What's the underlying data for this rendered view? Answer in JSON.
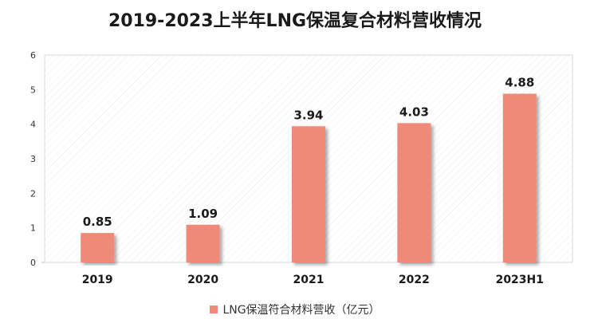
{
  "chart_data": {
    "type": "bar",
    "title": "2019-2023上半年LNG保温复合材料营收情况",
    "categories": [
      "2019",
      "2020",
      "2021",
      "2022",
      "2023H1"
    ],
    "series": [
      {
        "name": "LNG保温符合材料营收（亿元）",
        "values": [
          0.85,
          1.09,
          3.94,
          4.03,
          4.88
        ],
        "color": "#F08A78"
      }
    ],
    "data_labels": [
      "0.85",
      "1.09",
      "3.94",
      "4.03",
      "4.88"
    ],
    "ylim": [
      0,
      6
    ],
    "yticks": [
      "0",
      "1",
      "2",
      "3",
      "4",
      "5",
      "6"
    ],
    "grid": false,
    "legend_position": "bottom"
  }
}
